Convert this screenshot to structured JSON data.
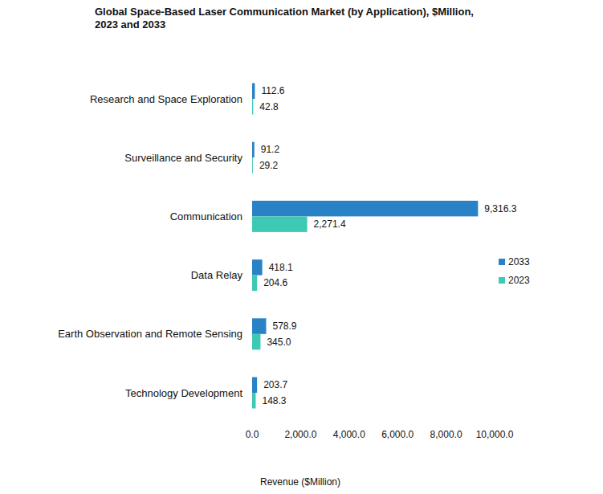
{
  "chart_data": {
    "type": "bar",
    "orientation": "horizontal",
    "title": "Global Space-Based Laser Communication Market (by Application), $Million, 2023 and 2033",
    "x_label": "Revenue ($Million)",
    "categories": [
      "Research and Space Exploration",
      "Surveillance and Security",
      "Communication",
      "Data Relay",
      "Earth Observation and Remote Sensing",
      "Technology Development"
    ],
    "series": [
      {
        "name": "2033",
        "color": "#2a82c6",
        "values": [
          112.6,
          91.2,
          9316.3,
          418.1,
          578.9,
          203.7
        ],
        "value_labels": [
          "112.6",
          "91.2",
          "9,316.3",
          "418.1",
          "578.9",
          "203.7"
        ]
      },
      {
        "name": "2023",
        "color": "#3ec9b4",
        "values": [
          42.8,
          29.2,
          2271.4,
          204.6,
          345.0,
          148.3
        ],
        "value_labels": [
          "42.8",
          "29.2",
          "2,271.4",
          "204.6",
          "345.0",
          "148.3"
        ]
      }
    ],
    "xlim": [
      0,
      10000
    ],
    "xticks": [
      {
        "value": 0,
        "label": "0.0"
      },
      {
        "value": 2000,
        "label": "2,000.0"
      },
      {
        "value": 4000,
        "label": "4,000.0"
      },
      {
        "value": 6000,
        "label": "6,000.0"
      },
      {
        "value": 8000,
        "label": "8,000.0"
      },
      {
        "value": 10000,
        "label": "10,000.0"
      }
    ],
    "grid": false,
    "legend": "right",
    "data_labels": true
  }
}
